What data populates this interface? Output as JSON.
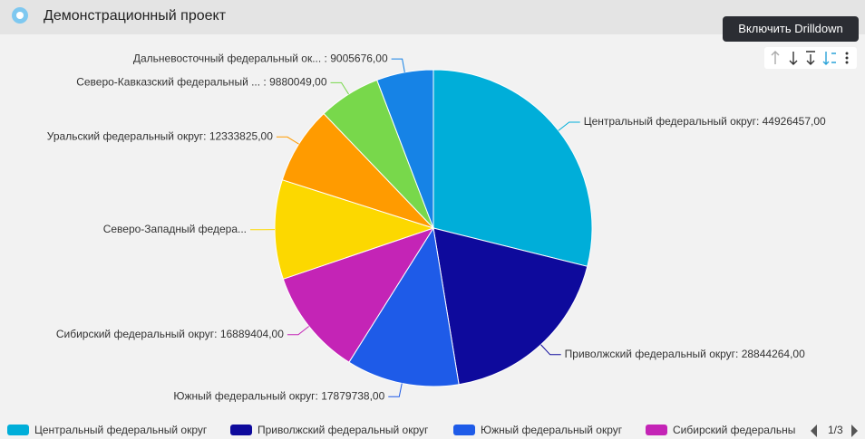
{
  "header": {
    "title": "Демонстрационный проект"
  },
  "tooltip": "Включить Drilldown",
  "chart_data": {
    "type": "pie",
    "categories": [
      "Центральный федеральный округ: 44926457,00",
      "Приволжский федеральный округ: 28844264,00",
      "Южный федеральный округ: 17879738,00",
      "Сибирский федеральный округ: 16889404,00",
      "Северо-Западный федера...",
      "Уральский федеральный округ: 12333825,00",
      "Северо-Кавказский федеральный ... : 9880049,00",
      "Дальневосточный федеральный ок... : 9005676,00"
    ],
    "values": [
      44926457,
      28844264,
      17879738,
      16889404,
      15770000,
      12333825,
      9880049,
      9005676
    ],
    "colors": [
      "#00aed9",
      "#0e0a9c",
      "#1e5be8",
      "#c424b6",
      "#fcd800",
      "#ff9b00",
      "#78d84b",
      "#1683e6"
    ],
    "legend": [
      "Центральный федеральный округ",
      "Приволжский федеральный округ",
      "Южный федеральный округ",
      "Сибирский федеральны"
    ],
    "legend_page": "1/3"
  }
}
